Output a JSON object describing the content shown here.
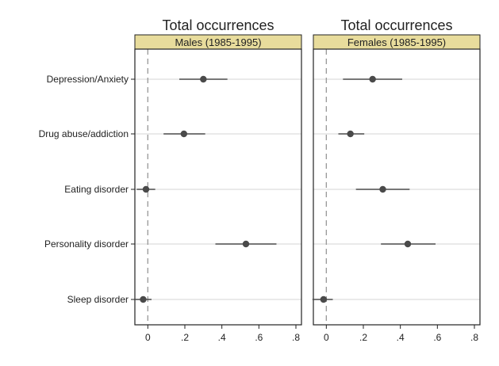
{
  "chart_data": {
    "type": "scatter",
    "subtype": "coefficient-plot",
    "categories": [
      "Depression/Anxiety",
      "Drug abuse/addiction",
      "Eating disorder",
      "Personality disorder",
      "Sleep disorder"
    ],
    "x_ticks": [
      0,
      0.2,
      0.4,
      0.6,
      0.8
    ],
    "x_tick_labels": [
      "0",
      ".2",
      ".4",
      ".6",
      ".8"
    ],
    "xlim": [
      -0.07,
      0.83
    ],
    "reference_line_x": 0,
    "grid": "horizontal",
    "colors": {
      "point": "#4a4a4a",
      "ci_line": "#4a4a4a",
      "strip": "#e8dc9c",
      "grid": "#d6d6d6",
      "reference": "#999999",
      "frame": "#222222"
    },
    "panels": [
      {
        "title": "Total occurrences",
        "strip_label": "Males (1985-1995)",
        "points": [
          {
            "category": "Depression/Anxiety",
            "estimate": 0.3,
            "ci_low": 0.17,
            "ci_high": 0.43
          },
          {
            "category": "Drug abuse/addiction",
            "estimate": 0.195,
            "ci_low": 0.085,
            "ci_high": 0.31
          },
          {
            "category": "Eating disorder",
            "estimate": -0.01,
            "ci_low": -0.06,
            "ci_high": 0.04
          },
          {
            "category": "Personality disorder",
            "estimate": 0.53,
            "ci_low": 0.365,
            "ci_high": 0.695
          },
          {
            "category": "Sleep disorder",
            "estimate": -0.025,
            "ci_low": -0.07,
            "ci_high": 0.02
          }
        ]
      },
      {
        "title": "Total occurrences",
        "strip_label": "Females (1985-1995)",
        "points": [
          {
            "category": "Depression/Anxiety",
            "estimate": 0.25,
            "ci_low": 0.09,
            "ci_high": 0.41
          },
          {
            "category": "Drug abuse/addiction",
            "estimate": 0.13,
            "ci_low": 0.065,
            "ci_high": 0.205
          },
          {
            "category": "Eating disorder",
            "estimate": 0.305,
            "ci_low": 0.16,
            "ci_high": 0.45
          },
          {
            "category": "Personality disorder",
            "estimate": 0.44,
            "ci_low": 0.295,
            "ci_high": 0.59
          },
          {
            "category": "Sleep disorder",
            "estimate": -0.015,
            "ci_low": -0.075,
            "ci_high": 0.035
          }
        ]
      }
    ]
  }
}
